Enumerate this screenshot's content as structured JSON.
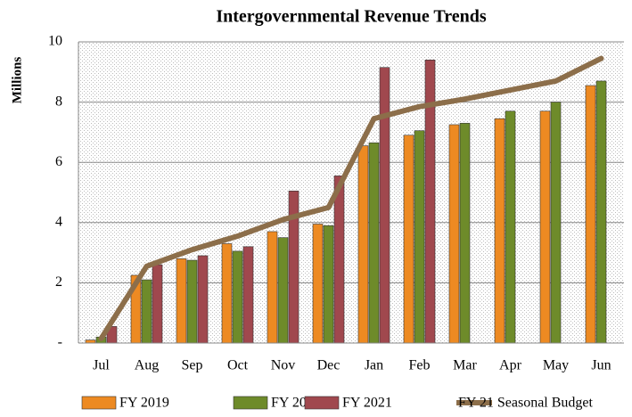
{
  "chart_data": {
    "type": "bar",
    "title": "Intergovernmental Revenue Trends",
    "y_label": "Millions",
    "categories": [
      "Jul",
      "Aug",
      "Sep",
      "Oct",
      "Nov",
      "Dec",
      "Jan",
      "Feb",
      "Mar",
      "Apr",
      "May",
      "Jun"
    ],
    "series": [
      {
        "name": "FY 2019",
        "color": "#ed8a22",
        "values": [
          0.1,
          2.25,
          2.8,
          3.3,
          3.7,
          3.95,
          6.55,
          6.9,
          7.25,
          7.45,
          7.7,
          8.55
        ]
      },
      {
        "name": "FY 2020",
        "color": "#6e8b2a",
        "values": [
          0.2,
          2.1,
          2.75,
          3.05,
          3.5,
          3.9,
          6.65,
          7.05,
          7.3,
          7.7,
          8.0,
          8.7
        ]
      },
      {
        "name": "FY 2021",
        "color": "#a0484e",
        "values": [
          0.55,
          2.6,
          2.9,
          3.2,
          5.05,
          5.55,
          9.15,
          9.4,
          null,
          null,
          null,
          null
        ]
      },
      {
        "name": "FY 21 Seasonal Budget",
        "color": "#8c6e4a",
        "type": "line",
        "values": [
          0.15,
          2.55,
          3.1,
          3.55,
          4.1,
          4.5,
          7.45,
          7.85,
          8.1,
          8.4,
          8.7,
          9.45
        ]
      }
    ],
    "ylim": [
      0,
      10
    ],
    "yticks": [
      {
        "value": 0,
        "label": "-"
      },
      2,
      4,
      6,
      8,
      10
    ],
    "grid": true,
    "legend": "bottom"
  }
}
